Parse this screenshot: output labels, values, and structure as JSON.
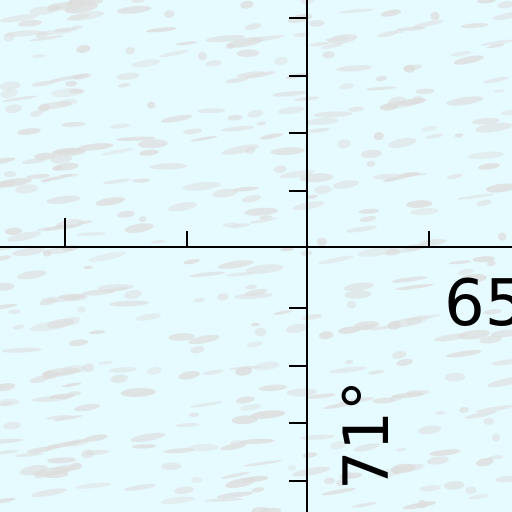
{
  "map": {
    "background_color": "#e6fbff",
    "texture_color": "#dddddd",
    "line_color": "#000000",
    "labels": {
      "lon": "65",
      "lat": "71°"
    }
  }
}
